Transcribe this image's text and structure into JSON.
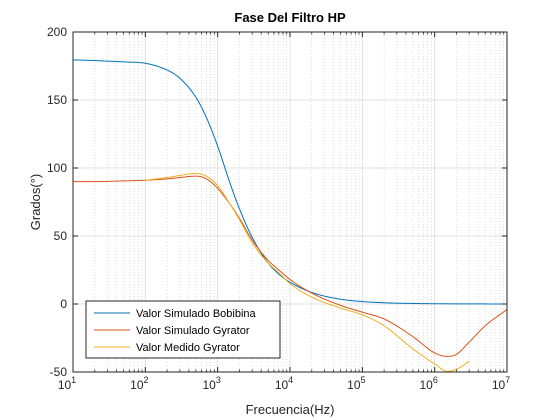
{
  "chart_data": {
    "type": "line",
    "title": "Fase Del Filtro HP",
    "xlabel": "Frecuencia(Hz)",
    "ylabel": "Grados(°)",
    "xscale": "log",
    "xlim": [
      10,
      10000000
    ],
    "ylim": [
      -50,
      200
    ],
    "x_ticks": [
      {
        "base": "10",
        "exp": "1"
      },
      {
        "base": "10",
        "exp": "2"
      },
      {
        "base": "10",
        "exp": "3"
      },
      {
        "base": "10",
        "exp": "4"
      },
      {
        "base": "10",
        "exp": "5"
      },
      {
        "base": "10",
        "exp": "6"
      },
      {
        "base": "10",
        "exp": "7"
      }
    ],
    "y_ticks": [
      "-50",
      "0",
      "50",
      "100",
      "150",
      "200"
    ],
    "grid": true,
    "minor_grid_x": true,
    "legend_position": "bottom-left",
    "series": [
      {
        "name": "Valor Simulado Bobibina",
        "color": "#0072BD",
        "x": [
          10,
          20,
          50,
          100,
          200,
          300,
          500,
          700,
          1000,
          1500,
          2000,
          3000,
          5000,
          7000,
          10000,
          20000,
          50000,
          100000,
          200000,
          500000,
          1000000,
          10000000
        ],
        "y": [
          179.5,
          179,
          178,
          177,
          172,
          166,
          152,
          137,
          116,
          88,
          70,
          49,
          30,
          22,
          16,
          8.5,
          3.5,
          1.8,
          0.9,
          0.4,
          0.2,
          0
        ]
      },
      {
        "name": "Valor Simulado Gyrator",
        "color": "#D95319",
        "x": [
          10,
          20,
          50,
          100,
          200,
          300,
          500,
          700,
          1000,
          1500,
          2000,
          3000,
          5000,
          7000,
          10000,
          20000,
          50000,
          100000,
          200000,
          500000,
          1000000,
          1500000,
          2000000,
          3000000,
          5000000,
          10000000
        ],
        "y": [
          90,
          90,
          90.5,
          91,
          92,
          93,
          94,
          92,
          85,
          73,
          63,
          47,
          32,
          25,
          18,
          8,
          -1,
          -6,
          -11,
          -24,
          -36,
          -38.5,
          -37,
          -28,
          -16,
          -4
        ]
      },
      {
        "name": "Valor Medido Gyrator",
        "color": "#EDB120",
        "x": [
          100,
          200,
          300,
          500,
          700,
          1000,
          1500,
          2000,
          3000,
          5000,
          7000,
          10000,
          20000,
          50000,
          100000,
          200000,
          500000,
          1000000,
          1500000,
          2000000,
          2500000,
          3000000
        ],
        "y": [
          91,
          93,
          94.5,
          96,
          94,
          87,
          73,
          62,
          45,
          30,
          23,
          15,
          5,
          -3,
          -8,
          -16,
          -33,
          -44,
          -49.5,
          -48,
          -45,
          -42
        ]
      }
    ]
  }
}
